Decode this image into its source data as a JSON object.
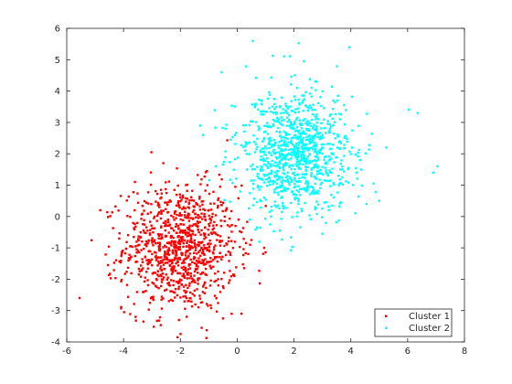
{
  "chart_data": {
    "type": "scatter",
    "title": "",
    "xlabel": "",
    "ylabel": "",
    "xlim": [
      -6,
      8
    ],
    "ylim": [
      -4,
      6
    ],
    "xticks": [
      -6,
      -4,
      -2,
      0,
      2,
      4,
      6,
      8
    ],
    "yticks": [
      -4,
      -3,
      -2,
      -1,
      0,
      1,
      2,
      3,
      4,
      5,
      6
    ],
    "grid": false,
    "legend_position": "bottom-right",
    "series": [
      {
        "name": "Cluster 1",
        "color": "#ff0000",
        "marker": "point",
        "count": 1000,
        "center": [
          -2.0,
          -1.0
        ],
        "spread": [
          1.0,
          1.0
        ],
        "points": [
          [
            -5.55,
            -2.6
          ],
          [
            -4.82,
            0.2
          ],
          [
            -4.55,
            -1.55
          ],
          [
            -4.05,
            -1.15
          ],
          [
            -3.98,
            -3.05
          ],
          [
            -3.02,
            2.05
          ],
          [
            -2.6,
            1.7
          ],
          [
            -3.6,
            1.1
          ],
          [
            -3.3,
            -3.35
          ],
          [
            -2.1,
            -3.85
          ],
          [
            -2.05,
            -3.3
          ],
          [
            -1.25,
            -3.55
          ],
          [
            -0.5,
            -3.25
          ],
          [
            0.15,
            -3.1
          ],
          [
            -1.05,
            1.0
          ],
          [
            -0.6,
            0.95
          ],
          [
            0.15,
            -0.5
          ],
          [
            0.5,
            -0.75
          ],
          [
            0.95,
            -1.0
          ],
          [
            0.05,
            -0.1
          ]
        ]
      },
      {
        "name": "Cluster 2",
        "color": "#00ffff",
        "marker": "point",
        "count": 1000,
        "center": [
          2.0,
          2.0
        ],
        "spread": [
          1.0,
          1.0
        ],
        "points": [
          [
            0.55,
            5.6
          ],
          [
            3.95,
            5.4
          ],
          [
            -0.55,
            4.6
          ],
          [
            2.35,
            4.95
          ],
          [
            6.35,
            3.3
          ],
          [
            7.05,
            1.6
          ],
          [
            6.9,
            1.4
          ],
          [
            5.25,
            2.2
          ],
          [
            4.8,
            1.05
          ],
          [
            5.0,
            0.5
          ],
          [
            4.55,
            0.4
          ],
          [
            0.45,
            -0.1
          ],
          [
            0.7,
            -0.35
          ],
          [
            1.5,
            -0.45
          ],
          [
            3.0,
            -0.55
          ],
          [
            -1.3,
            2.9
          ],
          [
            -0.4,
            2.8
          ],
          [
            -0.75,
            1.6
          ],
          [
            2.8,
            4.3
          ],
          [
            3.55,
            3.85
          ]
        ]
      }
    ]
  }
}
